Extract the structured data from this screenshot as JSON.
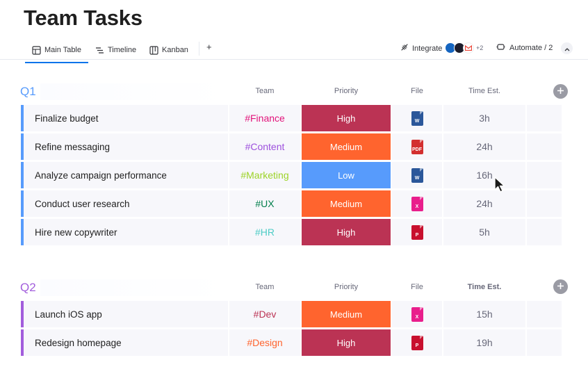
{
  "page_title": "Team Tasks",
  "tabs": [
    {
      "label": "Main Table",
      "icon": "table-icon",
      "active": true
    },
    {
      "label": "Timeline",
      "icon": "timeline-icon",
      "active": false
    },
    {
      "label": "Kanban",
      "icon": "kanban-icon",
      "active": false
    }
  ],
  "add_view_label": "+",
  "integrate": {
    "label": "Integrate",
    "more_count": "+2"
  },
  "automate": {
    "label": "Automate / 2"
  },
  "columns": {
    "team": "Team",
    "priority": "Priority",
    "file": "File",
    "time": "Time Est."
  },
  "priority_colors": {
    "High": "#bb3354",
    "Medium": "#ff642e",
    "Low": "#579bfc"
  },
  "groups": [
    {
      "title": "Q1",
      "color": "#579bfc",
      "rows": [
        {
          "name": "Finalize budget",
          "team": "#Finance",
          "team_color": "#e2137a",
          "priority": "High",
          "file": "word",
          "time": "3h"
        },
        {
          "name": "Refine messaging",
          "team": "#Content",
          "team_color": "#9d50dd",
          "priority": "Medium",
          "file": "pdf",
          "time": "24h"
        },
        {
          "name": "Analyze campaign performance",
          "team": "#Marketing",
          "team_color": "#9cd326",
          "priority": "Low",
          "file": "word",
          "time": "16h"
        },
        {
          "name": "Conduct user research",
          "team": "#UX",
          "team_color": "#037f4c",
          "priority": "Medium",
          "file": "excel-pink",
          "time": "24h"
        },
        {
          "name": "Hire new copywriter",
          "team": "#HR",
          "team_color": "#4eccc6",
          "priority": "High",
          "file": "powerpoint",
          "time": "5h"
        }
      ]
    },
    {
      "title": "Q2",
      "color": "#a25ddc",
      "rows": [
        {
          "name": "Launch iOS app",
          "team": "#Dev",
          "team_color": "#bb3354",
          "priority": "Medium",
          "file": "excel-pink",
          "time": "15h"
        },
        {
          "name": "Redesign homepage",
          "team": "#Design",
          "team_color": "#ff642e",
          "priority": "High",
          "file": "powerpoint",
          "time": "19h"
        }
      ]
    }
  ]
}
